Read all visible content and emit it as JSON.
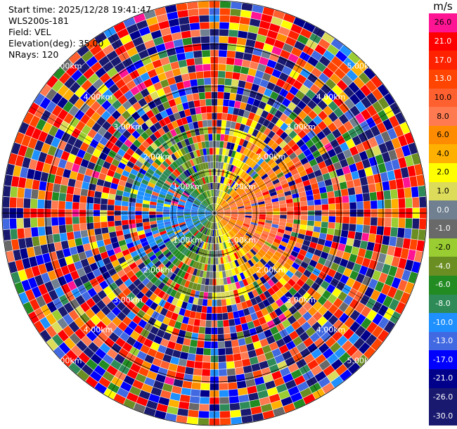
{
  "info": {
    "start_time": "Start time: 2025/12/28 19:41:47",
    "station": "WLS200s-181",
    "field": "Field: VEL",
    "elevation": "Elevation(deg): 35.00",
    "nrays": "NRays: 120"
  },
  "colorbar": {
    "unit": "m/s",
    "ticks": [
      "26.0",
      "21.0",
      "17.0",
      "13.0",
      "10.0",
      "8.0",
      "6.0",
      "4.0",
      "2.0",
      "1.0",
      "0.0",
      "-1.0",
      "-2.0",
      "-4.0",
      "-6.0",
      "-8.0",
      "-10.0",
      "-13.0",
      "-17.0",
      "-21.0",
      "-26.0",
      "-30.0"
    ],
    "colors": [
      "#ff1493",
      "#ff0000",
      "#ff2200",
      "#ff4500",
      "#ff6030",
      "#ff7a50",
      "#ff8c00",
      "#ffb000",
      "#ffff00",
      "#dcdc5a",
      "#708090",
      "#696969",
      "#9acd32",
      "#6b8e23",
      "#228b22",
      "#2e8b57",
      "#1e90ff",
      "#4169e1",
      "#0000ff",
      "#00008b",
      "#191970",
      "#191970"
    ]
  },
  "chart_data": {
    "type": "heatmap",
    "projection": "polar PPI",
    "field": "VEL",
    "elevation_deg": 35.0,
    "nrays": 120,
    "unit": "m/s",
    "range_rings": [
      {
        "range_km": "1.00km"
      },
      {
        "range_km": "2.00km"
      },
      {
        "range_km": "3.00km"
      },
      {
        "range_km": "4.00km"
      },
      {
        "range_km": "5.00km"
      }
    ],
    "color_levels": [
      -30.0,
      -26.0,
      -21.0,
      -17.0,
      -13.0,
      -10.0,
      -8.0,
      -6.0,
      -4.0,
      -2.0,
      -1.0,
      0.0,
      1.0,
      2.0,
      4.0,
      6.0,
      8.0,
      10.0,
      13.0,
      17.0,
      21.0,
      26.0
    ],
    "near_field_pattern": {
      "west_sector": "negative velocities (-2.0 to -13.0 m/s)",
      "east_sector": "positive velocities (2.0 to 13.0 m/s)",
      "far_field": "noise over full scale"
    }
  }
}
